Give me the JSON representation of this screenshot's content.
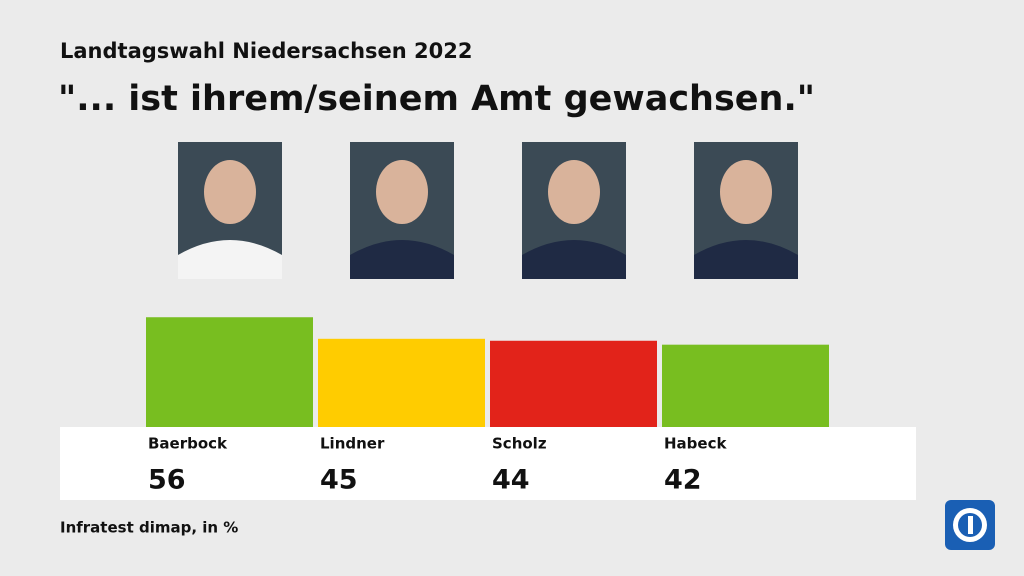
{
  "chart_data": {
    "type": "bar",
    "subtitle": "Landtagswahl Niedersachsen 2022",
    "title": "\"... ist ihrem/seinem Amt gewachsen.\"",
    "categories": [
      "Baerbock",
      "Lindner",
      "Scholz",
      "Habeck"
    ],
    "values": [
      56,
      45,
      44,
      42
    ],
    "colors": [
      "#78be20",
      "#ffcc00",
      "#e2231a",
      "#78be20"
    ],
    "source": "Infratest dimap, in %"
  }
}
